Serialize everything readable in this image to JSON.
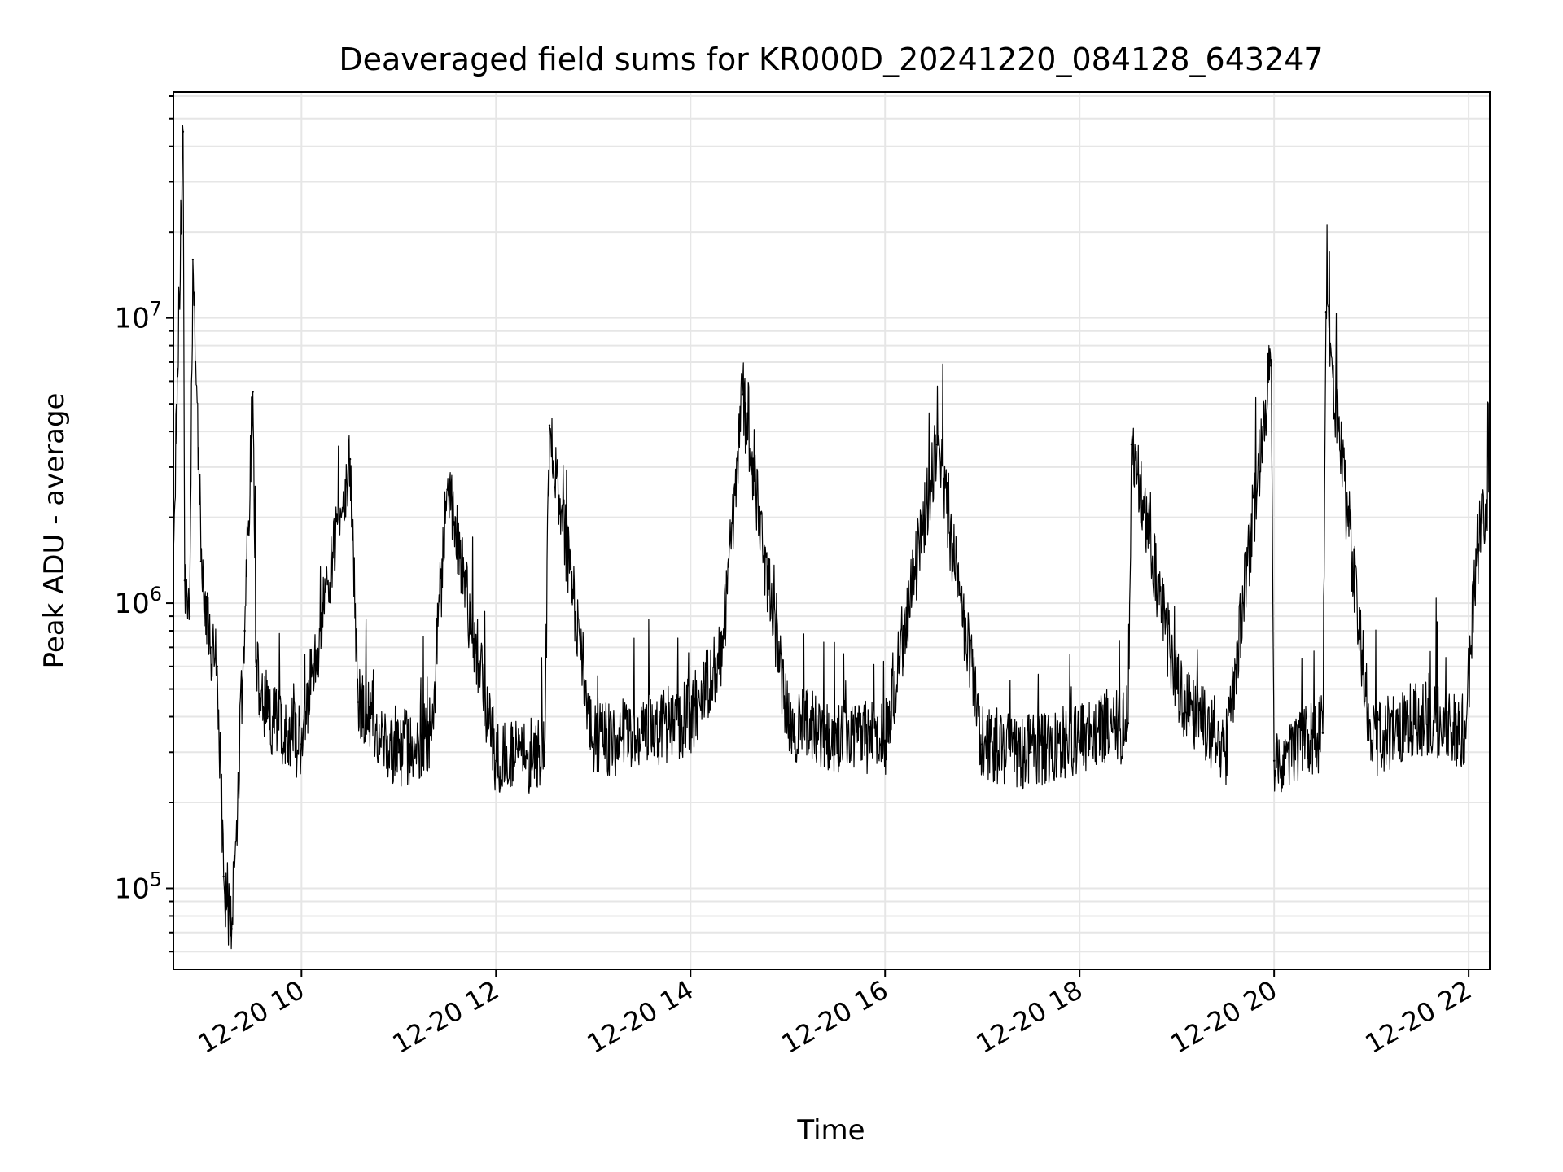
{
  "chart_data": {
    "type": "line",
    "title": "Deaveraged field sums for KR000D_20241220_084128_643247",
    "xlabel": "Time",
    "ylabel": "Peak ADU - average",
    "yscale": "log",
    "grid": true,
    "line_color": "#000000",
    "grid_color": "#e6e6e6",
    "xlim": [
      "2024-12-20 08:41",
      "2024-12-20 22:13"
    ],
    "ylim": [
      52000,
      62000000
    ],
    "x_ticks": [
      {
        "value": "2024-12-20 10:00",
        "label": "12-20 10"
      },
      {
        "value": "2024-12-20 12:00",
        "label": "12-20 12"
      },
      {
        "value": "2024-12-20 14:00",
        "label": "12-20 14"
      },
      {
        "value": "2024-12-20 16:00",
        "label": "12-20 16"
      },
      {
        "value": "2024-12-20 18:00",
        "label": "12-20 18"
      },
      {
        "value": "2024-12-20 20:00",
        "label": "12-20 20"
      },
      {
        "value": "2024-12-20 22:00",
        "label": "12-20 22"
      }
    ],
    "y_ticks": [
      {
        "value": 100000,
        "base": "10",
        "exp": "5"
      },
      {
        "value": 1000000,
        "base": "10",
        "exp": "6"
      },
      {
        "value": 10000000,
        "base": "10",
        "exp": "7"
      }
    ],
    "series": [
      {
        "x": [
          "2024-12-20 08:41",
          "2024-12-20 08:47",
          "2024-12-20 08:48",
          "2024-12-20 08:51",
          "2024-12-20 08:53",
          "2024-12-20 08:58",
          "2024-12-20 09:04",
          "2024-12-20 09:08",
          "2024-12-20 09:12",
          "2024-12-20 09:17",
          "2024-12-20 09:25",
          "2024-12-20 09:30",
          "2024-12-20 09:32",
          "2024-12-20 09:40",
          "2024-12-20 10:00",
          "2024-12-20 10:30",
          "2024-12-20 10:35",
          "2024-12-20 11:00",
          "2024-12-20 11:20",
          "2024-12-20 11:30",
          "2024-12-20 12:00",
          "2024-12-20 12:30",
          "2024-12-20 12:33",
          "2024-12-20 13:00",
          "2024-12-20 13:30",
          "2024-12-20 14:00",
          "2024-12-20 14:20",
          "2024-12-20 14:32",
          "2024-12-20 15:00",
          "2024-12-20 15:30",
          "2024-12-20 16:00",
          "2024-12-20 16:32",
          "2024-12-20 17:00",
          "2024-12-20 17:30",
          "2024-12-20 18:00",
          "2024-12-20 18:30",
          "2024-12-20 18:32",
          "2024-12-20 19:00",
          "2024-12-20 19:30",
          "2024-12-20 19:58",
          "2024-12-20 20:00",
          "2024-12-20 20:30",
          "2024-12-20 20:32",
          "2024-12-20 21:00",
          "2024-12-20 21:30",
          "2024-12-20 21:58",
          "2024-12-20 22:05",
          "2024-12-20 22:13"
        ],
        "y": [
          1500000,
          45000000,
          1200000,
          900000,
          16000000,
          1400000,
          700000,
          600000,
          110000,
          72000,
          800000,
          5500000,
          600000,
          400000,
          320000,
          3200000,
          450000,
          300000,
          350000,
          2500000,
          280000,
          300000,
          4200000,
          320000,
          350000,
          400000,
          700000,
          5400000,
          380000,
          350000,
          330000,
          3600000,
          320000,
          300000,
          330000,
          380000,
          3600000,
          500000,
          300000,
          6800000,
          280000,
          350000,
          10500000,
          330000,
          400000,
          350000,
          1500000,
          2500000
        ]
      }
    ]
  }
}
